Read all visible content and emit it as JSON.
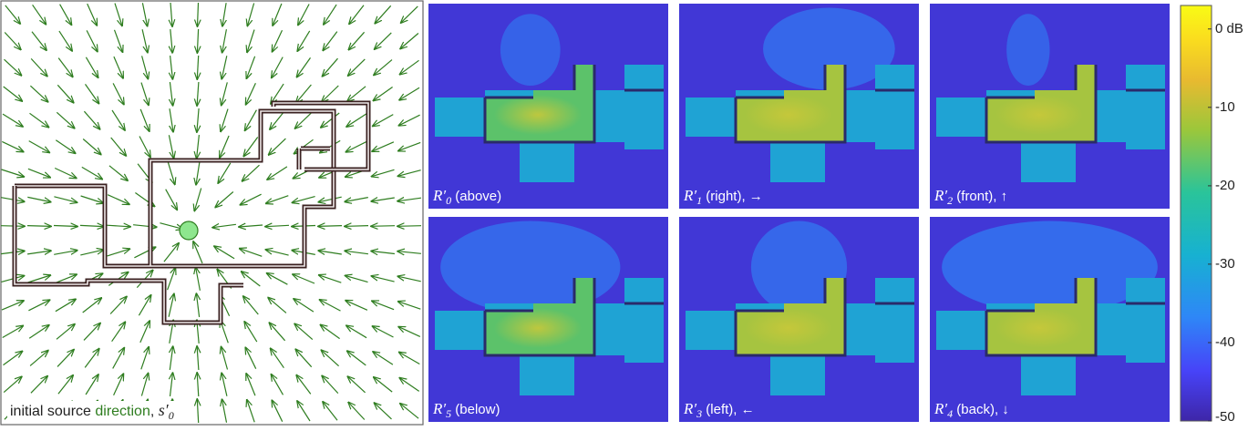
{
  "field": {
    "caption_text": "initial source direction, ",
    "caption_direction_word": "direction",
    "caption_prefix": "initial source ",
    "caption_suffix": ", ",
    "caption_symbol": "s′",
    "caption_subscript": "0",
    "arrow_color": "#2e7d1f",
    "wall_color": "#3a2020",
    "source_color": "#8ee68e"
  },
  "panels": [
    {
      "id": "above",
      "symbol": "R′",
      "sub": "0",
      "label": " (above)"
    },
    {
      "id": "right",
      "symbol": "R′",
      "sub": "1",
      "label": " (right), →"
    },
    {
      "id": "front",
      "symbol": "R′",
      "sub": "2",
      "label": " (front), ↑"
    },
    {
      "id": "below",
      "symbol": "R′",
      "sub": "5",
      "label": " (below)"
    },
    {
      "id": "left",
      "symbol": "R′",
      "sub": "3",
      "label": " (left), ←"
    },
    {
      "id": "back",
      "symbol": "R′",
      "sub": "4",
      "label": " (back), ↓"
    }
  ],
  "colorbar": {
    "ticks": [
      "0 dB",
      "-10",
      "-20",
      "-30",
      "-40",
      "-50"
    ],
    "tick_values": [
      0,
      -10,
      -20,
      -30,
      -40,
      -50
    ],
    "range": [
      -50,
      3
    ],
    "colormap": [
      "#3e26a8",
      "#4743f8",
      "#2e87f7",
      "#17b1d1",
      "#2ac49a",
      "#9bc73b",
      "#e8ba30",
      "#fadd1e",
      "#f9fb15"
    ]
  }
}
